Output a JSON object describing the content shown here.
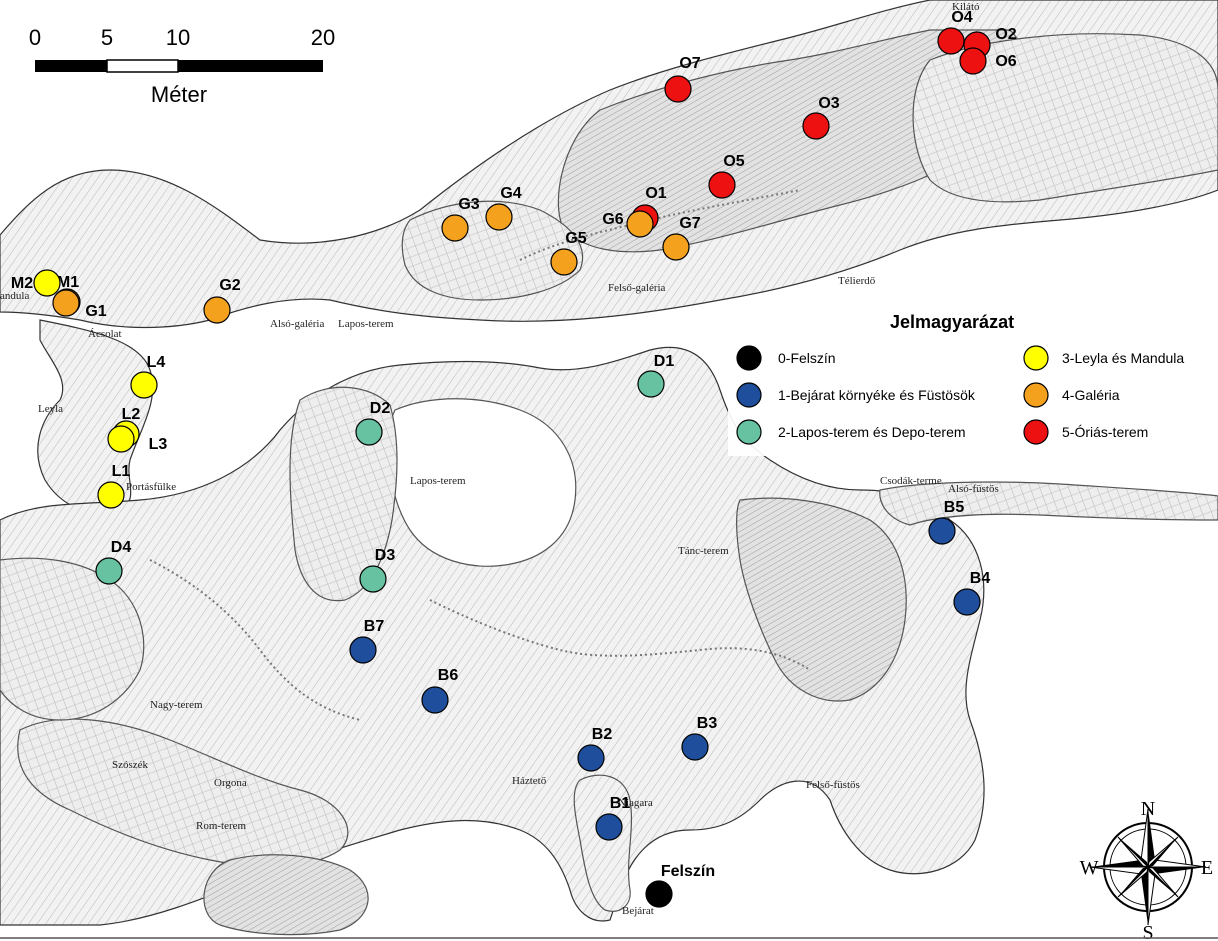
{
  "scale": {
    "ticks": [
      "0",
      "5",
      "10",
      "20"
    ],
    "unit": "Méter"
  },
  "legend": {
    "title": "Jelmagyarázat",
    "items": [
      {
        "label": "0-Felszín",
        "color": "#000000"
      },
      {
        "label": "1-Bejárat környéke és Füstösök",
        "color": "#1f4f9c"
      },
      {
        "label": "2-Lapos-terem és Depo-terem",
        "color": "#66c2a0"
      },
      {
        "label": "3-Leyla és Mandula",
        "color": "#ffff00"
      },
      {
        "label": "4-Galéria",
        "color": "#f4a21d"
      },
      {
        "label": "5-Óriás-terem",
        "color": "#ee1111"
      }
    ]
  },
  "sites": [
    {
      "id": "O4",
      "group": 5
    },
    {
      "id": "O2",
      "group": 5
    },
    {
      "id": "O6",
      "group": 5
    },
    {
      "id": "O7",
      "group": 5
    },
    {
      "id": "O3",
      "group": 5
    },
    {
      "id": "O5",
      "group": 5
    },
    {
      "id": "O1",
      "group": 5
    },
    {
      "id": "G3",
      "group": 4
    },
    {
      "id": "G4",
      "group": 4
    },
    {
      "id": "G6",
      "group": 4
    },
    {
      "id": "G7",
      "group": 4
    },
    {
      "id": "G5",
      "group": 4
    },
    {
      "id": "M1",
      "group": 4
    },
    {
      "id": "G1",
      "group": 4
    },
    {
      "id": "G2",
      "group": 4
    },
    {
      "id": "M2",
      "group": 3
    },
    {
      "id": "L4",
      "group": 3
    },
    {
      "id": "L2",
      "group": 3
    },
    {
      "id": "L3",
      "group": 3
    },
    {
      "id": "L1",
      "group": 3
    },
    {
      "id": "D1",
      "group": 2
    },
    {
      "id": "D2",
      "group": 2
    },
    {
      "id": "D3",
      "group": 2
    },
    {
      "id": "D4",
      "group": 2
    },
    {
      "id": "B5",
      "group": 1
    },
    {
      "id": "B4",
      "group": 1
    },
    {
      "id": "B7",
      "group": 1
    },
    {
      "id": "B6",
      "group": 1
    },
    {
      "id": "B2",
      "group": 1
    },
    {
      "id": "B3",
      "group": 1
    },
    {
      "id": "B1",
      "group": 1
    },
    {
      "id": "Felszín",
      "group": 0
    }
  ],
  "places": [
    "Kilátó",
    "Felső-galéria",
    "Télierdő",
    "Alsó-galéria",
    "Lapos-terem",
    "Ácsolat",
    "andula",
    "Leyla",
    "Portásfülke",
    "Lapos-terem",
    "Csodák-terme",
    "Alsó-füstös",
    "Tánc-terem",
    "Nagy-terem",
    "Szószék",
    "Orgona",
    "Rom-terem",
    "Háztető",
    "Niagara",
    "Felső-füstös",
    "Bejárat"
  ],
  "compass": {
    "n": "N",
    "s": "S",
    "e": "E",
    "w": "W"
  }
}
